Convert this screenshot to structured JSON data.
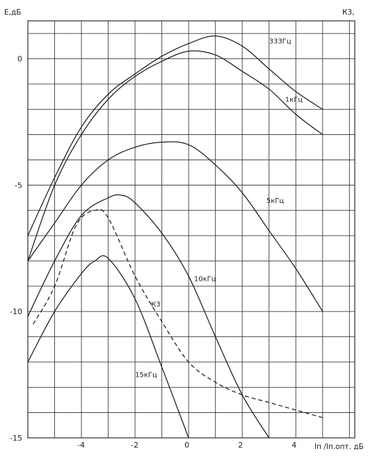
{
  "chart_data": {
    "type": "line",
    "title": "",
    "ylabel": "E,дБ",
    "xlabel": "Iп /Iп.опт. дБ",
    "right_label": "К3,",
    "xlim": [
      -6,
      6.2
    ],
    "ylim": [
      -15,
      1.5
    ],
    "grid": true,
    "x_ticks": [
      -4,
      -2,
      0,
      2,
      4
    ],
    "y_ticks": [
      0,
      -5,
      -10,
      -15
    ],
    "series": [
      {
        "name": "333Гц",
        "style": "solid",
        "points": [
          [
            -6,
            -7
          ],
          [
            -5,
            -4.7
          ],
          [
            -4,
            -2.7
          ],
          [
            -3,
            -1.4
          ],
          [
            -2,
            -0.6
          ],
          [
            -1,
            0.1
          ],
          [
            0,
            0.6
          ],
          [
            1,
            0.9
          ],
          [
            2,
            0.5
          ],
          [
            3,
            -0.4
          ],
          [
            4,
            -1.3
          ],
          [
            5,
            -2
          ]
        ]
      },
      {
        "name": "1кГц",
        "style": "solid",
        "points": [
          [
            -6,
            -8
          ],
          [
            -5,
            -5
          ],
          [
            -4,
            -3
          ],
          [
            -3,
            -1.6
          ],
          [
            -2,
            -0.7
          ],
          [
            -1,
            -0.1
          ],
          [
            0,
            0.3
          ],
          [
            1,
            0.15
          ],
          [
            2,
            -0.5
          ],
          [
            3,
            -1.2
          ],
          [
            4,
            -2.2
          ],
          [
            5,
            -3
          ]
        ]
      },
      {
        "name": "5кГц",
        "style": "solid",
        "points": [
          [
            -6,
            -8
          ],
          [
            -5,
            -6.5
          ],
          [
            -4,
            -5
          ],
          [
            -3,
            -4
          ],
          [
            -2,
            -3.5
          ],
          [
            -1,
            -3.3
          ],
          [
            0,
            -3.4
          ],
          [
            1,
            -4.2
          ],
          [
            2,
            -5.3
          ],
          [
            3,
            -6.8
          ],
          [
            4,
            -8.3
          ],
          [
            5,
            -10
          ]
        ]
      },
      {
        "name": "10кГц",
        "style": "solid",
        "points": [
          [
            -6,
            -10.2
          ],
          [
            -5,
            -8
          ],
          [
            -4,
            -6.2
          ],
          [
            -3,
            -5.5
          ],
          [
            -2.5,
            -5.4
          ],
          [
            -2,
            -5.7
          ],
          [
            -1,
            -6.9
          ],
          [
            0,
            -8.6
          ],
          [
            1,
            -11
          ],
          [
            2,
            -13.3
          ],
          [
            3,
            -15
          ]
        ]
      },
      {
        "name": "15кГц",
        "style": "solid",
        "points": [
          [
            -6,
            -12
          ],
          [
            -5,
            -10
          ],
          [
            -4,
            -8.5
          ],
          [
            -3.5,
            -8
          ],
          [
            -3,
            -7.9
          ],
          [
            -2,
            -9.5
          ],
          [
            -1,
            -12.2
          ],
          [
            0,
            -15
          ]
        ]
      },
      {
        "name": "К3",
        "style": "dashed",
        "points": [
          [
            -5.8,
            -10.5
          ],
          [
            -5,
            -9
          ],
          [
            -4.2,
            -6.6
          ],
          [
            -3.5,
            -6
          ],
          [
            -3,
            -6.3
          ],
          [
            -2,
            -8.6
          ],
          [
            -1,
            -10.4
          ],
          [
            0,
            -12
          ],
          [
            1,
            -12.8
          ],
          [
            2,
            -13.3
          ],
          [
            3,
            -13.6
          ],
          [
            4,
            -13.9
          ],
          [
            5,
            -14.2
          ]
        ]
      }
    ]
  }
}
